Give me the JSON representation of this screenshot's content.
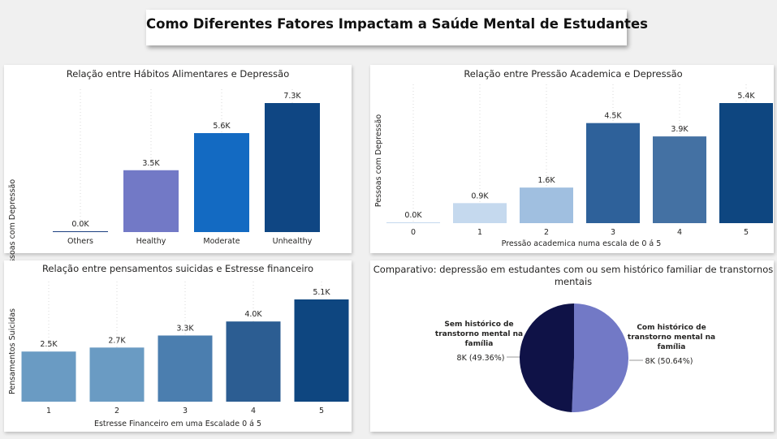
{
  "page_title": "Como Diferentes Fatores Impactam a Saúde Mental de Estudantes",
  "chart_data": [
    {
      "type": "bar",
      "title": "Relação entre Hábitos Alimentares e Depressão",
      "xlabel": "",
      "ylabel": "Pessoas com Depressão",
      "categories": [
        "Others",
        "Healthy",
        "Moderate",
        "Unhealthy"
      ],
      "values": [
        0,
        3500,
        5600,
        7300
      ],
      "value_labels": [
        "0.0K",
        "3.5K",
        "5.6K",
        "7.3K"
      ],
      "colors": [
        "#1b3f80",
        "#7279c6",
        "#136ac2",
        "#0f4683"
      ],
      "ylim": [
        0,
        7300
      ],
      "gridlines": false
    },
    {
      "type": "bar",
      "title": "Relação entre Pressão Academica e Depressão",
      "xlabel": "Pressão academica numa escala de 0 á 5",
      "ylabel": "Pessoas com Depressão",
      "categories": [
        "0",
        "1",
        "2",
        "3",
        "4",
        "5"
      ],
      "values": [
        0,
        900,
        1600,
        4500,
        3900,
        5400
      ],
      "value_labels": [
        "0.0K",
        "0.9K",
        "1.6K",
        "4.5K",
        "3.9K",
        "5.4K"
      ],
      "colors": [
        "#c5d9ee",
        "#c5d9ee",
        "#a0bfe0",
        "#2e619a",
        "#4471a3",
        "#0e4680"
      ],
      "ylim": [
        0,
        5400
      ],
      "gridlines": false
    },
    {
      "type": "bar",
      "title": "Relação entre pensamentos suicidas e Estresse financeiro",
      "xlabel": "Estresse Financeiro em uma Escalade 0 á 5",
      "ylabel": "Pensamentos Suicidas",
      "categories": [
        "1",
        "2",
        "3",
        "4",
        "5"
      ],
      "values": [
        2500,
        2700,
        3300,
        4000,
        5100
      ],
      "value_labels": [
        "2.5K",
        "2.7K",
        "3.3K",
        "4.0K",
        "5.1K"
      ],
      "colors": [
        "#6a9bc3",
        "#6a9bc3",
        "#4b7eaf",
        "#2c5d92",
        "#0e4680"
      ],
      "ylim": [
        0,
        5100
      ],
      "gridlines": false
    },
    {
      "type": "pie",
      "title": "Comparativo: depressão em estudantes com ou sem histórico familiar de transtornos mentais",
      "slices": [
        {
          "label": "Com histórico de transtorno mental na família",
          "value": 50.64,
          "value_text": "8K (50.64%)",
          "color": "#7279c6"
        },
        {
          "label": "Sem histórico de transtorno mental na família",
          "value": 49.36,
          "value_text": "8K (49.36%)",
          "color": "#0f1247"
        }
      ]
    }
  ]
}
